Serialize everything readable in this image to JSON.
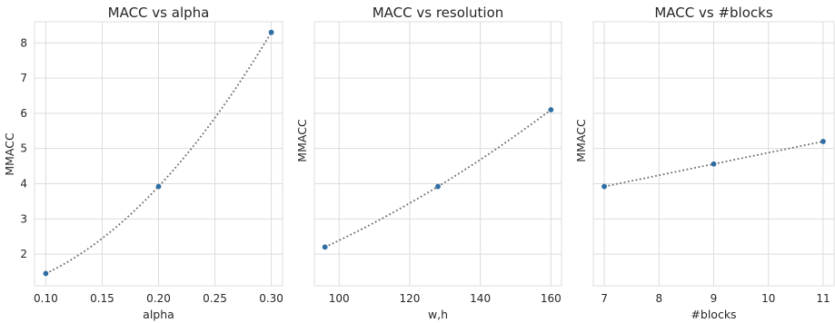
{
  "chart_data": [
    {
      "type": "scatter",
      "title": "MACC vs alpha",
      "xlabel": "alpha",
      "ylabel": "MMACC",
      "x": [
        0.1,
        0.2,
        0.3
      ],
      "y": [
        1.45,
        3.92,
        8.3
      ],
      "xlim": [
        0.09,
        0.31
      ],
      "ylim": [
        1.1,
        8.6
      ],
      "xticks": [
        0.1,
        0.15,
        0.2,
        0.25,
        0.3
      ],
      "xtick_labels": [
        "0.10",
        "0.15",
        "0.20",
        "0.25",
        "0.30"
      ],
      "yticks": [
        2,
        3,
        4,
        5,
        6,
        7,
        8
      ],
      "ytick_labels": [
        "2",
        "3",
        "4",
        "5",
        "6",
        "7",
        "8"
      ],
      "fit": "quadratic, dotted",
      "grid": true
    },
    {
      "type": "scatter",
      "title": "MACC vs resolution",
      "xlabel": "w,h",
      "ylabel": "MMACC",
      "x": [
        96,
        128,
        160
      ],
      "y": [
        2.2,
        3.92,
        6.1
      ],
      "xlim": [
        93,
        163
      ],
      "ylim": [
        1.1,
        8.6
      ],
      "xticks": [
        100,
        120,
        140,
        160
      ],
      "xtick_labels": [
        "100",
        "120",
        "140",
        "160"
      ],
      "yticks": [
        2,
        3,
        4,
        5,
        6,
        7,
        8
      ],
      "ytick_labels": [],
      "fit": "quadratic, dotted",
      "grid": true
    },
    {
      "type": "scatter",
      "title": "MACC vs #blocks",
      "xlabel": "#blocks",
      "ylabel": "MMACC",
      "x": [
        7,
        9,
        11
      ],
      "y": [
        3.92,
        4.56,
        5.2
      ],
      "xlim": [
        6.8,
        11.2
      ],
      "ylim": [
        1.1,
        8.6
      ],
      "xticks": [
        7,
        8,
        9,
        10,
        11
      ],
      "xtick_labels": [
        "7",
        "8",
        "9",
        "10",
        "11"
      ],
      "yticks": [
        2,
        3,
        4,
        5,
        6,
        7,
        8
      ],
      "ytick_labels": [],
      "fit": "linear, dotted",
      "grid": true
    }
  ],
  "colors": {
    "point": "#2f6ea3",
    "curve": "#6f6f6f",
    "grid": "#dcdcdc"
  }
}
